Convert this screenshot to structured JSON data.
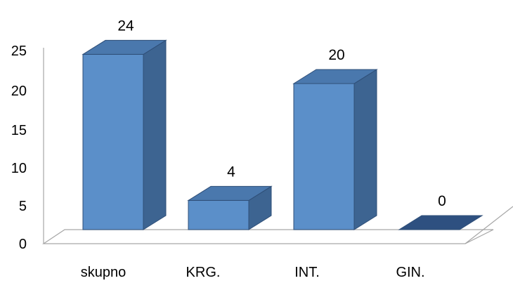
{
  "chart_data": {
    "type": "bar",
    "style": "3d-column",
    "categories": [
      "skupno",
      "KRG.",
      "INT.",
      "GIN."
    ],
    "values": [
      24,
      4,
      20,
      0
    ],
    "ylim": [
      0,
      25
    ],
    "yticks": [
      "0",
      "5",
      "10",
      "15",
      "20",
      "25"
    ],
    "data_labels": [
      "24",
      "4",
      "20",
      "0"
    ],
    "grid": false,
    "legend": "none",
    "colors": {
      "front": "#5b8fc9",
      "side": "#3d6491",
      "top": "#4a78ad",
      "zero_top": "#2e5080",
      "edge": "#2f4f78",
      "floor": "#a6a6a6"
    }
  }
}
